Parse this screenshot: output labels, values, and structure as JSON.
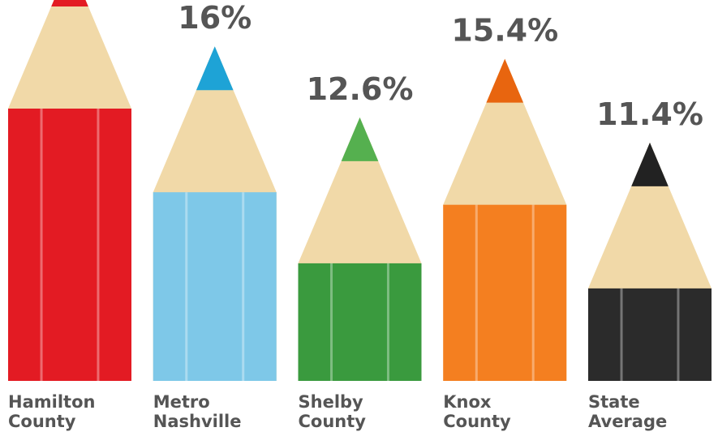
{
  "chart_data": {
    "type": "pencil-bar",
    "categories": [
      "Hamilton County",
      "Metro Nashville",
      "Shelby County",
      "Knox County",
      "State Average"
    ],
    "values": [
      20,
      16,
      12.6,
      15.4,
      11.4
    ],
    "value_labels": [
      null,
      "16%",
      "12.6%",
      "15.4%",
      "11.4%"
    ],
    "colors": [
      "#e31b23",
      "#7ec8e8",
      "#3a9a3e",
      "#f47f20",
      "#2b2b2b"
    ],
    "tip_colors": [
      "#e31b23",
      "#1ea3d6",
      "#55b04f",
      "#e8650f",
      "#222222"
    ]
  }
}
